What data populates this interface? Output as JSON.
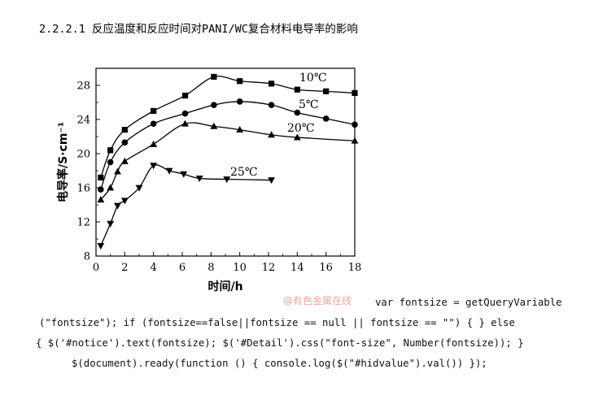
{
  "heading": "2.2.2.1 反应温度和反应时间对PANI/WC复合材料电导率的影响",
  "watermark": "@有色金属在线",
  "code_lines": [
    "var fontsize = getQueryVariable",
    "(\"fontsize\"); if (fontsize==false||fontsize == null || fontsize == \"\") { } else",
    "{ $('#notice').text(fontsize); $('#Detail').css(\"font-size\", Number(fontsize)); }",
    "$(document).ready(function () { console.log($(\"#hidvalue\").val()) });"
  ],
  "chart_data": {
    "type": "line",
    "xlabel": "时间/h",
    "ylabel": "电导率/S·cm⁻¹",
    "xlim": [
      0,
      18
    ],
    "ylim": [
      8,
      30
    ],
    "xticks": [
      0,
      2,
      4,
      6,
      8,
      10,
      12,
      14,
      16,
      18
    ],
    "yticks": [
      8,
      12,
      16,
      20,
      24,
      28
    ],
    "grid": false,
    "series": [
      {
        "name": "10℃",
        "marker": "square",
        "x": [
          0.33,
          1,
          2,
          4,
          6.2,
          8.2,
          10,
          12.2,
          14,
          16,
          18
        ],
        "y": [
          17.2,
          20.4,
          22.8,
          25.0,
          26.8,
          29.0,
          28.5,
          28.2,
          27.5,
          27.3,
          27.1
        ]
      },
      {
        "name": "5℃",
        "marker": "circle",
        "x": [
          0.33,
          1,
          2,
          4,
          6.2,
          8.2,
          10,
          12.2,
          14,
          16,
          18
        ],
        "y": [
          15.8,
          19.0,
          21.3,
          23.5,
          24.7,
          25.7,
          26.1,
          25.7,
          24.8,
          24.1,
          23.4
        ]
      },
      {
        "name": "20℃",
        "marker": "triangle-up",
        "x": [
          0.33,
          1,
          1.5,
          2,
          4,
          6.2,
          8.2,
          10,
          12.2,
          14,
          18
        ],
        "y": [
          14.6,
          16.0,
          17.9,
          19.1,
          21.1,
          23.5,
          23.2,
          22.8,
          22.2,
          21.9,
          21.5
        ]
      },
      {
        "name": "25℃",
        "marker": "triangle-down",
        "x": [
          0.33,
          1,
          1.5,
          2,
          3,
          4,
          5.1,
          6.1,
          7.2,
          9.1,
          12.2
        ],
        "y": [
          9.2,
          11.8,
          13.9,
          14.5,
          16.0,
          18.6,
          18.0,
          17.6,
          17.1,
          17.0,
          16.9
        ]
      }
    ],
    "annotations": [
      {
        "text": "10℃",
        "series": "10℃"
      },
      {
        "text": "5℃",
        "series": "5℃"
      },
      {
        "text": "20℃",
        "series": "20℃"
      },
      {
        "text": "25℃",
        "series": "25℃"
      }
    ]
  }
}
